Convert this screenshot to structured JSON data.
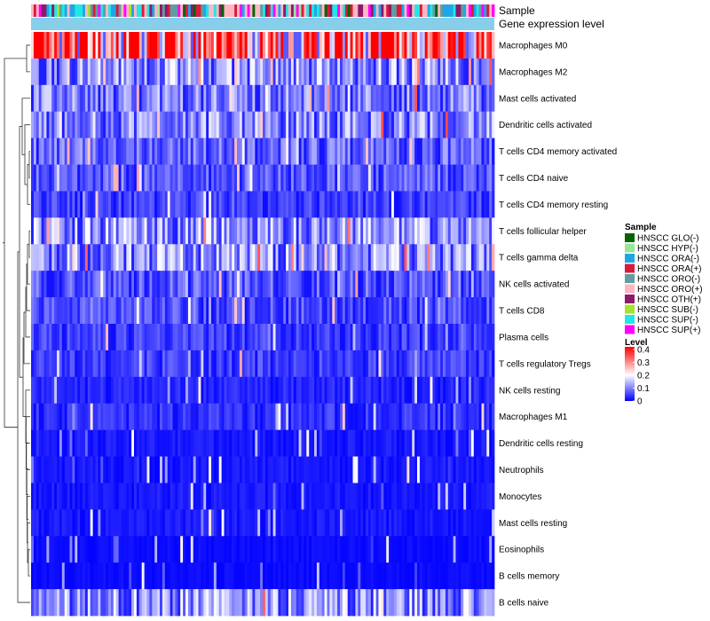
{
  "chart_data": {
    "type": "heatmap",
    "title": "",
    "annotation_tracks": [
      "Sample",
      "Gene expression level"
    ],
    "rows": [
      "Macrophages M0",
      "Macrophages M2",
      "Mast cells activated",
      "Dendritic cells activated",
      "T cells CD4 memory activated",
      "T cells CD4 naive",
      "T cells CD4 memory resting",
      "T cells follicular helper",
      "T cells gamma delta",
      "NK cells activated",
      "T cells CD8",
      "Plasma cells",
      "T cells regulatory  Tregs",
      "NK cells resting",
      "Macrophages M1",
      "Dendritic cells resting",
      "Neutrophils",
      "Monocytes",
      "Mast cells resting",
      "Eosinophils",
      "B cells memory",
      "B cells naive"
    ],
    "row_typical_level": [
      0.35,
      0.12,
      0.1,
      0.11,
      0.08,
      0.07,
      0.05,
      0.12,
      0.12,
      0.07,
      0.06,
      0.05,
      0.05,
      0.03,
      0.04,
      0.02,
      0.02,
      0.02,
      0.02,
      0.01,
      0.01,
      0.12
    ],
    "n_samples": 180,
    "sample_legend": {
      "title": "Sample",
      "items": [
        {
          "label": "HNSCC GLO(-)",
          "color": "#006400"
        },
        {
          "label": "HNSCC HYP(-)",
          "color": "#98e698"
        },
        {
          "label": "HNSCC ORA(-)",
          "color": "#1ea7e6"
        },
        {
          "label": "HNSCC ORA(+)",
          "color": "#d81b3c"
        },
        {
          "label": "HNSCC ORO(-)",
          "color": "#5f9ea0"
        },
        {
          "label": "HNSCC ORO(+)",
          "color": "#ffb6c1"
        },
        {
          "label": "HNSCC OTH(+)",
          "color": "#8b1a6b"
        },
        {
          "label": "HNSCC SUB(-)",
          "color": "#a6e22e"
        },
        {
          "label": "HNSCC SUP(-)",
          "color": "#22e6e6"
        },
        {
          "label": "HNSCC SUP(+)",
          "color": "#ff00ff"
        }
      ]
    },
    "level_legend": {
      "title": "Level",
      "ticks": [
        "0.4",
        "0.3",
        "0.2",
        "0.1",
        "0"
      ],
      "tick_values": [
        0.4,
        0.3,
        0.2,
        0.1,
        0
      ],
      "range": [
        0,
        0.42
      ],
      "color_low": "#0000ff",
      "color_mid": "#ffffff",
      "color_high": "#ff0000"
    },
    "gene_expression_color": "#87ceeb"
  }
}
